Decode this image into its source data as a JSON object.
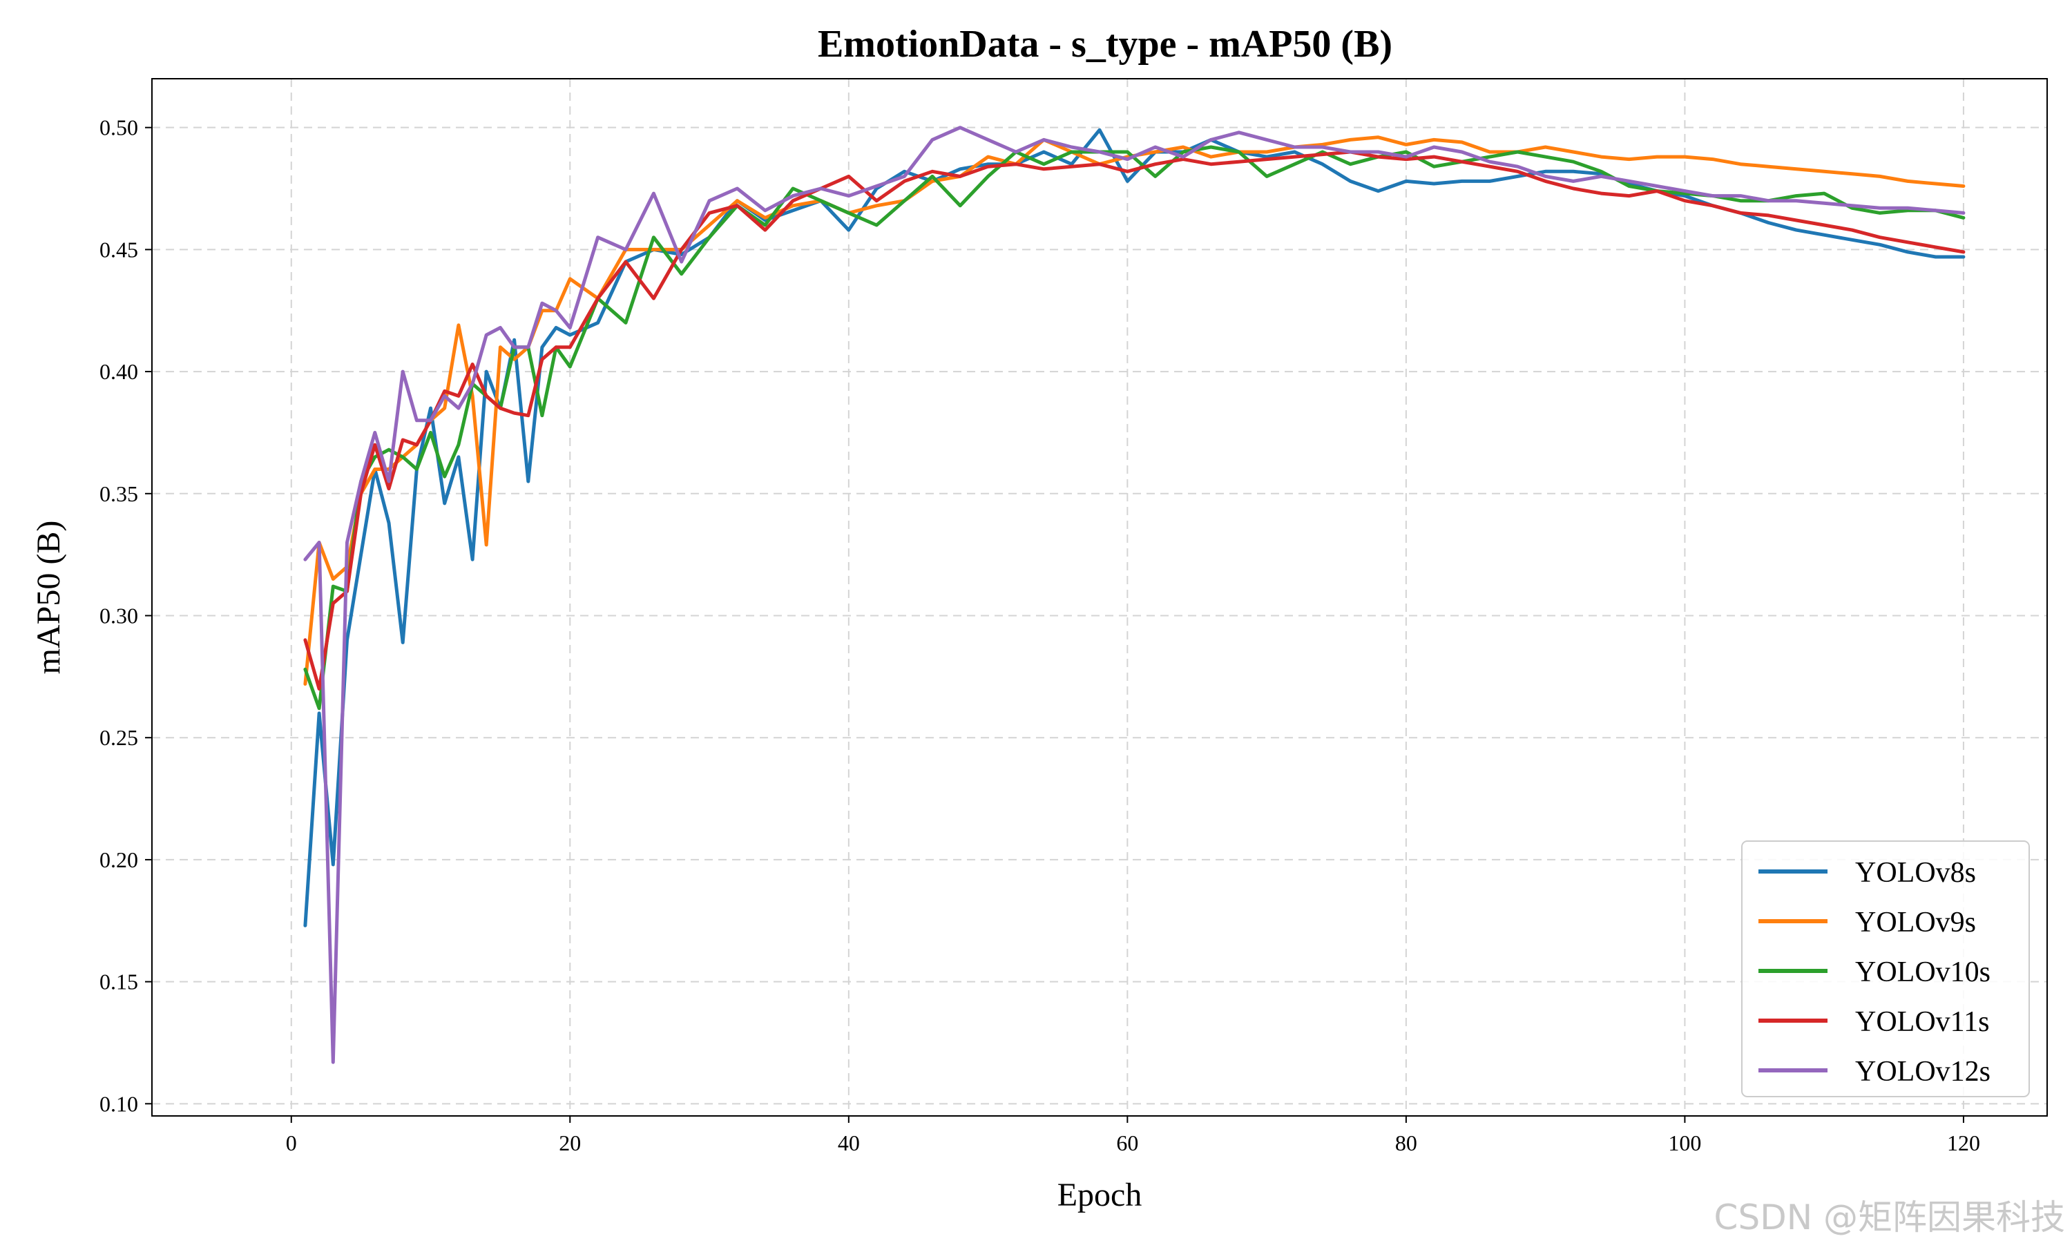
{
  "chart_data": {
    "type": "line",
    "title": "EmotionData - s_type - mAP50 (B)",
    "xlabel": "Epoch",
    "ylabel": "mAP50 (B)",
    "xlim": [
      -10,
      126
    ],
    "ylim": [
      0.095,
      0.52
    ],
    "xticks": [
      0,
      20,
      40,
      60,
      80,
      100,
      120
    ],
    "yticks": [
      0.1,
      0.15,
      0.2,
      0.25,
      0.3,
      0.35,
      0.4,
      0.45,
      0.5
    ],
    "grid": true,
    "legend_position": "bottom-right",
    "series": [
      {
        "name": "YOLOv8s",
        "color": "#1f77b4",
        "x": [
          1,
          2,
          3,
          4,
          5,
          6,
          7,
          8,
          9,
          10,
          11,
          12,
          13,
          14,
          15,
          16,
          17,
          18,
          19,
          20,
          22,
          24,
          26,
          28,
          30,
          32,
          34,
          36,
          38,
          40,
          42,
          44,
          46,
          48,
          50,
          52,
          54,
          56,
          58,
          60,
          62,
          64,
          66,
          68,
          70,
          72,
          74,
          76,
          78,
          80,
          82,
          84,
          86,
          88,
          90,
          92,
          94,
          96,
          98,
          100,
          102,
          104,
          106,
          108,
          110,
          112,
          114,
          116,
          118,
          120
        ],
        "y": [
          0.173,
          0.26,
          0.198,
          0.29,
          0.325,
          0.36,
          0.338,
          0.289,
          0.36,
          0.385,
          0.346,
          0.365,
          0.323,
          0.4,
          0.385,
          0.413,
          0.355,
          0.41,
          0.418,
          0.415,
          0.42,
          0.445,
          0.45,
          0.448,
          0.455,
          0.47,
          0.462,
          0.466,
          0.47,
          0.458,
          0.475,
          0.482,
          0.478,
          0.483,
          0.485,
          0.485,
          0.49,
          0.485,
          0.499,
          0.478,
          0.49,
          0.49,
          0.495,
          0.49,
          0.488,
          0.49,
          0.485,
          0.478,
          0.474,
          0.478,
          0.477,
          0.478,
          0.478,
          0.48,
          0.482,
          0.482,
          0.481,
          0.477,
          0.474,
          0.472,
          0.468,
          0.465,
          0.461,
          0.458,
          0.456,
          0.454,
          0.452,
          0.449,
          0.447,
          0.447
        ]
      },
      {
        "name": "YOLOv9s",
        "color": "#ff7f0e",
        "x": [
          1,
          2,
          3,
          4,
          5,
          6,
          7,
          8,
          9,
          10,
          11,
          12,
          13,
          14,
          15,
          16,
          17,
          18,
          19,
          20,
          22,
          24,
          26,
          28,
          30,
          32,
          34,
          36,
          38,
          40,
          42,
          44,
          46,
          48,
          50,
          52,
          54,
          56,
          58,
          60,
          62,
          64,
          66,
          68,
          70,
          72,
          74,
          76,
          78,
          80,
          82,
          84,
          86,
          88,
          90,
          92,
          94,
          96,
          98,
          100,
          102,
          104,
          106,
          108,
          110,
          112,
          114,
          116,
          118,
          120
        ],
        "y": [
          0.272,
          0.33,
          0.315,
          0.32,
          0.35,
          0.36,
          0.36,
          0.365,
          0.37,
          0.38,
          0.385,
          0.419,
          0.39,
          0.329,
          0.41,
          0.405,
          0.41,
          0.425,
          0.425,
          0.438,
          0.43,
          0.45,
          0.45,
          0.45,
          0.46,
          0.47,
          0.463,
          0.468,
          0.47,
          0.465,
          0.468,
          0.47,
          0.478,
          0.48,
          0.488,
          0.485,
          0.495,
          0.49,
          0.485,
          0.488,
          0.49,
          0.492,
          0.488,
          0.49,
          0.49,
          0.492,
          0.493,
          0.495,
          0.496,
          0.493,
          0.495,
          0.494,
          0.49,
          0.49,
          0.492,
          0.49,
          0.488,
          0.487,
          0.488,
          0.488,
          0.487,
          0.485,
          0.484,
          0.483,
          0.482,
          0.481,
          0.48,
          0.478,
          0.477,
          0.476
        ]
      },
      {
        "name": "YOLOv10s",
        "color": "#2ca02c",
        "x": [
          1,
          2,
          3,
          4,
          5,
          6,
          7,
          8,
          9,
          10,
          11,
          12,
          13,
          14,
          15,
          16,
          17,
          18,
          19,
          20,
          22,
          24,
          26,
          28,
          30,
          32,
          34,
          36,
          38,
          40,
          42,
          44,
          46,
          48,
          50,
          52,
          54,
          56,
          58,
          60,
          62,
          64,
          66,
          68,
          70,
          72,
          74,
          76,
          78,
          80,
          82,
          84,
          86,
          88,
          90,
          92,
          94,
          96,
          98,
          100,
          102,
          104,
          106,
          108,
          110,
          112,
          114,
          116,
          118,
          120
        ],
        "y": [
          0.278,
          0.262,
          0.312,
          0.31,
          0.355,
          0.365,
          0.368,
          0.365,
          0.36,
          0.375,
          0.357,
          0.37,
          0.395,
          0.39,
          0.385,
          0.41,
          0.41,
          0.382,
          0.41,
          0.402,
          0.43,
          0.42,
          0.455,
          0.44,
          0.455,
          0.468,
          0.46,
          0.475,
          0.47,
          0.465,
          0.46,
          0.47,
          0.48,
          0.468,
          0.48,
          0.49,
          0.485,
          0.49,
          0.49,
          0.49,
          0.48,
          0.49,
          0.492,
          0.49,
          0.48,
          0.485,
          0.49,
          0.485,
          0.488,
          0.49,
          0.484,
          0.486,
          0.488,
          0.49,
          0.488,
          0.486,
          0.482,
          0.476,
          0.474,
          0.473,
          0.472,
          0.47,
          0.47,
          0.472,
          0.473,
          0.467,
          0.465,
          0.466,
          0.466,
          0.463
        ]
      },
      {
        "name": "YOLOv11s",
        "color": "#d62728",
        "x": [
          1,
          2,
          3,
          4,
          5,
          6,
          7,
          8,
          9,
          10,
          11,
          12,
          13,
          14,
          15,
          16,
          17,
          18,
          19,
          20,
          22,
          24,
          26,
          28,
          30,
          32,
          34,
          36,
          38,
          40,
          42,
          44,
          46,
          48,
          50,
          52,
          54,
          56,
          58,
          60,
          62,
          64,
          66,
          68,
          70,
          72,
          74,
          76,
          78,
          80,
          82,
          84,
          86,
          88,
          90,
          92,
          94,
          96,
          98,
          100,
          102,
          104,
          106,
          108,
          110,
          112,
          114,
          116,
          118,
          120
        ],
        "y": [
          0.29,
          0.27,
          0.305,
          0.31,
          0.35,
          0.37,
          0.352,
          0.372,
          0.37,
          0.38,
          0.392,
          0.39,
          0.403,
          0.39,
          0.385,
          0.383,
          0.382,
          0.405,
          0.41,
          0.41,
          0.43,
          0.445,
          0.43,
          0.45,
          0.465,
          0.468,
          0.458,
          0.47,
          0.475,
          0.48,
          0.47,
          0.478,
          0.482,
          0.48,
          0.484,
          0.485,
          0.483,
          0.484,
          0.485,
          0.482,
          0.485,
          0.487,
          0.485,
          0.486,
          0.487,
          0.488,
          0.489,
          0.49,
          0.488,
          0.487,
          0.488,
          0.486,
          0.484,
          0.482,
          0.478,
          0.475,
          0.473,
          0.472,
          0.474,
          0.47,
          0.468,
          0.465,
          0.464,
          0.462,
          0.46,
          0.458,
          0.455,
          0.453,
          0.451,
          0.449
        ]
      },
      {
        "name": "YOLOv12s",
        "color": "#9467bd",
        "x": [
          1,
          2,
          3,
          4,
          5,
          6,
          7,
          8,
          9,
          10,
          11,
          12,
          13,
          14,
          15,
          16,
          17,
          18,
          19,
          20,
          22,
          24,
          26,
          28,
          30,
          32,
          34,
          36,
          38,
          40,
          42,
          44,
          46,
          48,
          50,
          52,
          54,
          56,
          58,
          60,
          62,
          64,
          66,
          68,
          70,
          72,
          74,
          76,
          78,
          80,
          82,
          84,
          86,
          88,
          90,
          92,
          94,
          96,
          98,
          100,
          102,
          104,
          106,
          108,
          110,
          112,
          114,
          116,
          118,
          120
        ],
        "y": [
          0.323,
          0.33,
          0.117,
          0.33,
          0.355,
          0.375,
          0.355,
          0.4,
          0.38,
          0.38,
          0.39,
          0.385,
          0.395,
          0.415,
          0.418,
          0.41,
          0.41,
          0.428,
          0.425,
          0.418,
          0.455,
          0.45,
          0.473,
          0.445,
          0.47,
          0.475,
          0.466,
          0.472,
          0.475,
          0.472,
          0.476,
          0.48,
          0.495,
          0.5,
          0.495,
          0.49,
          0.495,
          0.492,
          0.49,
          0.487,
          0.492,
          0.488,
          0.495,
          0.498,
          0.495,
          0.492,
          0.492,
          0.49,
          0.49,
          0.488,
          0.492,
          0.49,
          0.486,
          0.484,
          0.48,
          0.478,
          0.48,
          0.478,
          0.476,
          0.474,
          0.472,
          0.472,
          0.47,
          0.47,
          0.469,
          0.468,
          0.467,
          0.467,
          0.466,
          0.465
        ]
      }
    ]
  },
  "watermark": "CSDN @矩阵因果科技"
}
